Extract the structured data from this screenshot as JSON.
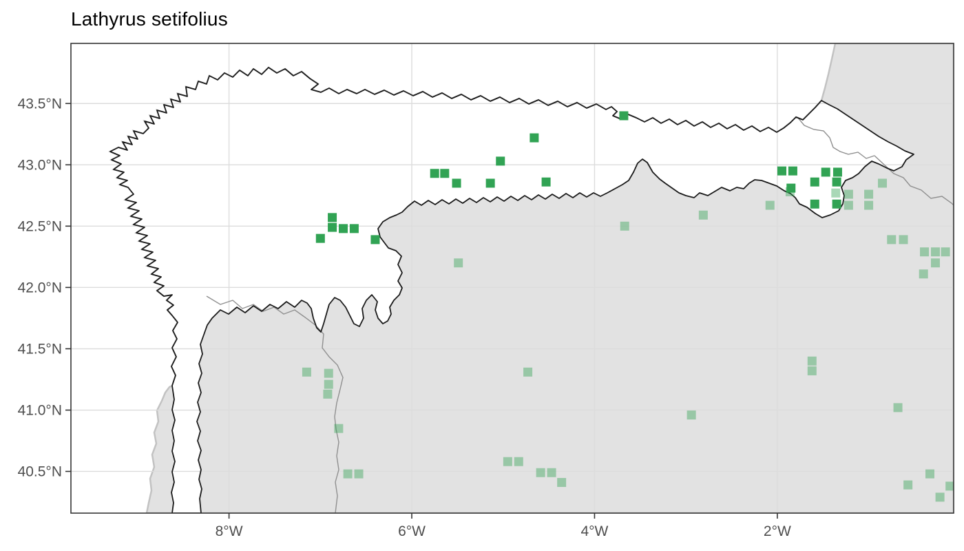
{
  "title": "Lathyrus setifolius",
  "map": {
    "colors": {
      "sea_and_panel": "#ffffff",
      "land_gray": "#e2e2e2",
      "coast_halo": "#c2c2c2",
      "focal_fill": "#ffffff",
      "focal_outline": "#1a1a1a",
      "admin_gray": "#8f8f8f",
      "grid": "#dcdcdc",
      "panel_border": "#333333",
      "tick_mark": "#333333",
      "tick_text": "#4d4d4d",
      "point_green": "#31a354"
    },
    "x_axis": {
      "ticks": [
        {
          "label": "8°W",
          "lon": -8
        },
        {
          "label": "6°W",
          "lon": -6
        },
        {
          "label": "4°W",
          "lon": -4
        },
        {
          "label": "2°W",
          "lon": -2
        }
      ]
    },
    "y_axis": {
      "ticks": [
        {
          "label": "43.5°N",
          "lat": 43.5
        },
        {
          "label": "43.0°N",
          "lat": 43.0
        },
        {
          "label": "42.5°N",
          "lat": 42.5
        },
        {
          "label": "42.0°N",
          "lat": 42.0
        },
        {
          "label": "41.5°N",
          "lat": 41.5
        },
        {
          "label": "41.0°N",
          "lat": 41.0
        },
        {
          "label": "40.5°N",
          "lat": 40.5
        }
      ]
    }
  },
  "chart_data": {
    "type": "scatter",
    "title": "Lathyrus setifolius",
    "xlabel": "",
    "ylabel": "",
    "grid": true,
    "legend": "none",
    "lon_range": [
      -9.73,
      -0.07
    ],
    "lat_range": [
      40.16,
      43.99
    ],
    "marker": "square",
    "series": [
      {
        "name": "occurrence-dark-green",
        "color": "#31a354",
        "opacity": 1,
        "points": [
          {
            "lon": -6.87,
            "lat": 42.57
          },
          {
            "lon": -6.87,
            "lat": 42.49
          },
          {
            "lon": -6.75,
            "lat": 42.48
          },
          {
            "lon": -6.63,
            "lat": 42.48
          },
          {
            "lon": -7.0,
            "lat": 42.4
          },
          {
            "lon": -6.4,
            "lat": 42.39
          },
          {
            "lon": -5.75,
            "lat": 42.93
          },
          {
            "lon": -5.64,
            "lat": 42.93
          },
          {
            "lon": -5.51,
            "lat": 42.85
          },
          {
            "lon": -5.14,
            "lat": 42.85
          },
          {
            "lon": -5.03,
            "lat": 43.03
          },
          {
            "lon": -4.66,
            "lat": 43.22
          },
          {
            "lon": -4.53,
            "lat": 42.86
          },
          {
            "lon": -3.68,
            "lat": 43.4
          },
          {
            "lon": -1.95,
            "lat": 42.95
          },
          {
            "lon": -1.83,
            "lat": 42.95
          },
          {
            "lon": -1.47,
            "lat": 42.94
          },
          {
            "lon": -1.34,
            "lat": 42.94
          },
          {
            "lon": -1.85,
            "lat": 42.81
          },
          {
            "lon": -1.59,
            "lat": 42.86
          },
          {
            "lon": -1.35,
            "lat": 42.86
          },
          {
            "lon": -1.59,
            "lat": 42.68
          },
          {
            "lon": -1.35,
            "lat": 42.68
          }
        ]
      },
      {
        "name": "occurrence-light-green",
        "color": "#31a354",
        "opacity": 0.42,
        "points": [
          {
            "lon": -7.15,
            "lat": 41.31
          },
          {
            "lon": -6.91,
            "lat": 41.3
          },
          {
            "lon": -6.91,
            "lat": 41.21
          },
          {
            "lon": -6.92,
            "lat": 41.13
          },
          {
            "lon": -6.8,
            "lat": 40.85
          },
          {
            "lon": -6.7,
            "lat": 40.48
          },
          {
            "lon": -6.58,
            "lat": 40.48
          },
          {
            "lon": -5.49,
            "lat": 42.2
          },
          {
            "lon": -4.73,
            "lat": 41.31
          },
          {
            "lon": -4.95,
            "lat": 40.58
          },
          {
            "lon": -4.83,
            "lat": 40.58
          },
          {
            "lon": -4.59,
            "lat": 40.49
          },
          {
            "lon": -4.47,
            "lat": 40.49
          },
          {
            "lon": -4.36,
            "lat": 40.41
          },
          {
            "lon": -3.67,
            "lat": 42.5
          },
          {
            "lon": -2.94,
            "lat": 40.96
          },
          {
            "lon": -2.81,
            "lat": 42.59
          },
          {
            "lon": -2.08,
            "lat": 42.67
          },
          {
            "lon": -1.86,
            "lat": 42.78
          },
          {
            "lon": -1.36,
            "lat": 42.77
          },
          {
            "lon": -1.22,
            "lat": 42.76
          },
          {
            "lon": -1.22,
            "lat": 42.67
          },
          {
            "lon": -1.0,
            "lat": 42.76
          },
          {
            "lon": -1.0,
            "lat": 42.67
          },
          {
            "lon": -0.85,
            "lat": 42.85
          },
          {
            "lon": -0.75,
            "lat": 42.39
          },
          {
            "lon": -0.62,
            "lat": 42.39
          },
          {
            "lon": -0.39,
            "lat": 42.29
          },
          {
            "lon": -0.27,
            "lat": 42.29
          },
          {
            "lon": -0.16,
            "lat": 42.29
          },
          {
            "lon": -0.27,
            "lat": 42.2
          },
          {
            "lon": -0.4,
            "lat": 42.11
          },
          {
            "lon": -1.62,
            "lat": 41.4
          },
          {
            "lon": -1.62,
            "lat": 41.32
          },
          {
            "lon": -0.68,
            "lat": 41.02
          },
          {
            "lon": -0.33,
            "lat": 40.48
          },
          {
            "lon": -0.57,
            "lat": 40.39
          },
          {
            "lon": -0.22,
            "lat": 40.29
          },
          {
            "lon": -0.11,
            "lat": 40.38
          }
        ]
      }
    ]
  }
}
